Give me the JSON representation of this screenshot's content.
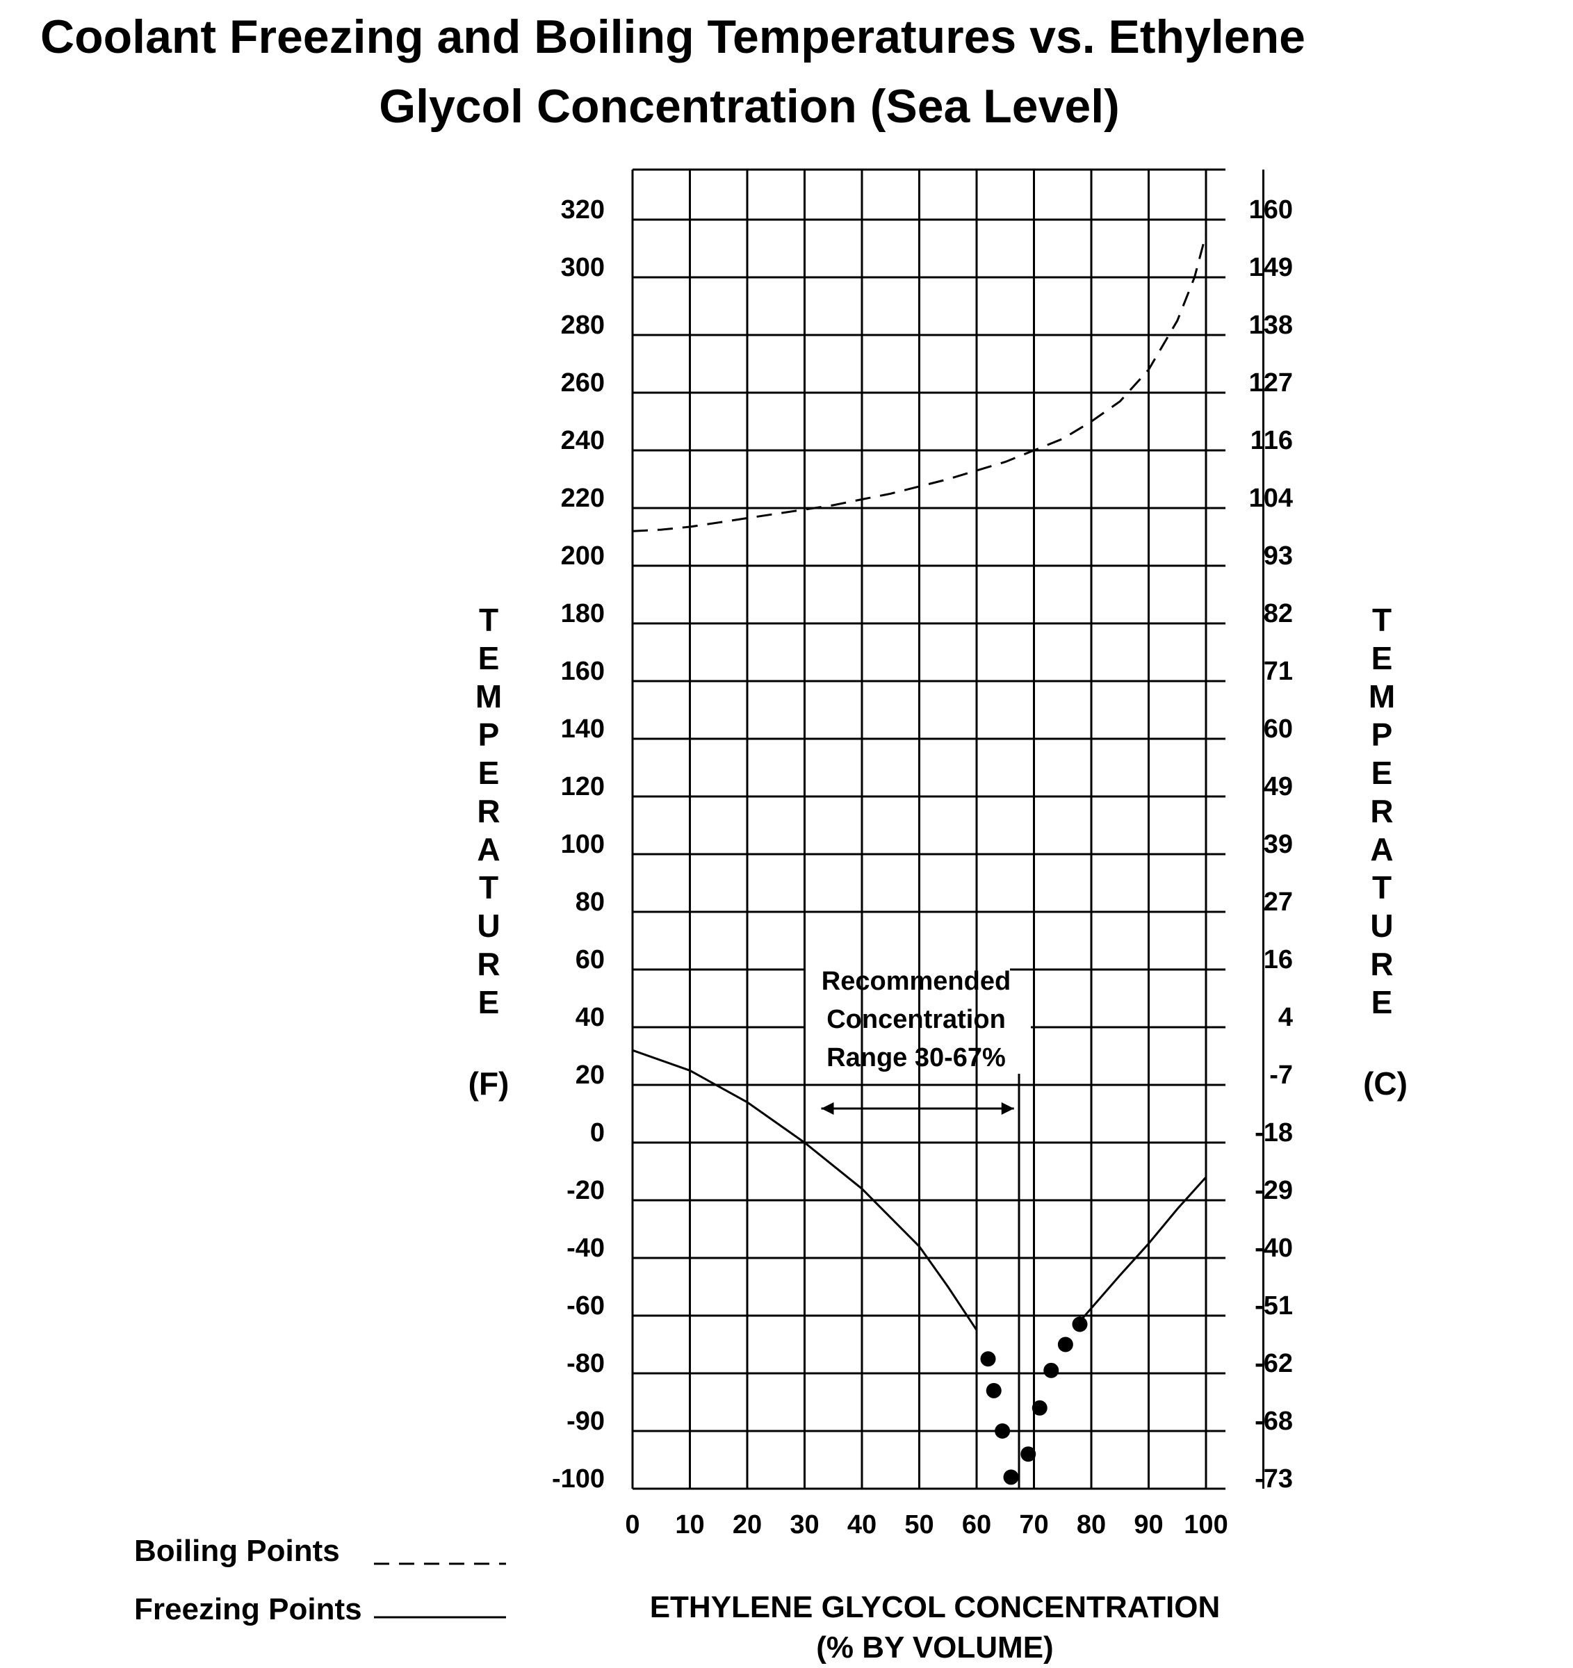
{
  "title_lines": [
    "Coolant Freezing and Boiling Temperatures vs. Ethylene",
    "Glycol Concentration (Sea Level)"
  ],
  "chart_data": {
    "type": "line",
    "title": "Coolant Freezing and Boiling Temperatures vs. Ethylene Glycol Concentration (Sea Level)",
    "xlabel": [
      "ETHYLENE GLYCOL CONCENTRATION",
      "(% BY VOLUME)"
    ],
    "ylabel_left": "TEMPERATURE",
    "ylabel_left_unit": "(F)",
    "ylabel_right": "TEMPERATURE",
    "ylabel_right_unit": "(C)",
    "xlim": [
      0,
      100
    ],
    "x_ticks": [
      "0",
      "10",
      "20",
      "30",
      "40",
      "50",
      "60",
      "70",
      "80",
      "90",
      "100"
    ],
    "left_ticks": [
      "320",
      "300",
      "280",
      "260",
      "240",
      "220",
      "200",
      "180",
      "160",
      "140",
      "120",
      "100",
      "80",
      "60",
      "40",
      "20",
      "0",
      "-20",
      "-40",
      "-60",
      "-80",
      "-90",
      "-100"
    ],
    "right_ticks": [
      "160",
      "149",
      "138",
      "127",
      "116",
      "104",
      "93",
      "82",
      "71",
      "60",
      "49",
      "39",
      "27",
      "16",
      "4",
      "-7",
      "-18",
      "-29",
      "-40",
      "-51",
      "-62",
      "-68",
      "-73"
    ],
    "grid": true,
    "series": [
      {
        "name": "Boiling Points",
        "style": "dashed",
        "x": [
          0,
          5,
          10,
          15,
          20,
          25,
          30,
          35,
          40,
          45,
          50,
          55,
          60,
          65,
          70,
          75,
          80,
          85,
          90,
          95,
          98,
          100
        ],
        "y": [
          212,
          212.5,
          213.5,
          215,
          216.5,
          218,
          219.5,
          221,
          223,
          225,
          227.5,
          230,
          233,
          236,
          240,
          244,
          250,
          257,
          268,
          285,
          300,
          315
        ]
      },
      {
        "name": "Freezing Points",
        "style": "solid",
        "x": [
          0,
          10,
          20,
          30,
          40,
          50,
          55,
          60
        ],
        "y": [
          32,
          25,
          14,
          0,
          -16,
          -36,
          -50,
          -65
        ]
      },
      {
        "name": "Freezing Points",
        "style": "solid",
        "x": [
          78,
          85,
          90,
          95,
          100
        ],
        "y": [
          -62,
          -46,
          -35,
          -23,
          -12
        ]
      },
      {
        "name": "Freezing Points",
        "style": "dots",
        "x": [
          62,
          63,
          64.5,
          66,
          69,
          71,
          73,
          75.5,
          78
        ],
        "y": [
          -75,
          -83,
          -90,
          -98,
          -94,
          -86,
          -79,
          -70,
          -63
        ]
      }
    ],
    "annotation": {
      "lines": [
        "Recommended",
        "Concentration",
        "Range 30-67%"
      ],
      "range": [
        30,
        67
      ]
    },
    "legend": {
      "placement": "bottom-left",
      "entries": [
        {
          "label": "Boiling Points",
          "style": "dashed"
        },
        {
          "label": "Freezing Points",
          "style": "solid"
        }
      ]
    },
    "colors": {
      "ink": "#000000",
      "background": "#ffffff"
    }
  }
}
